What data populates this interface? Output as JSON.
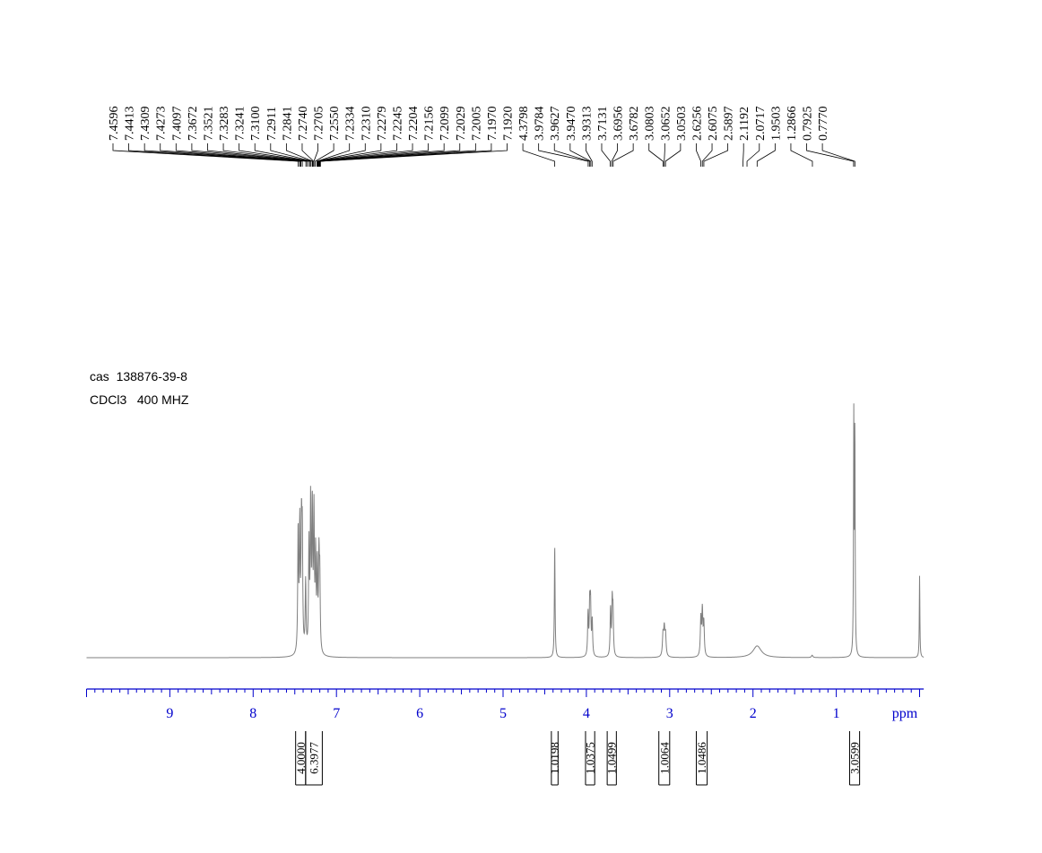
{
  "sample": {
    "cas_text": "cas  138876-39-8",
    "solvent_freq_text": "CDCl3   400 MHZ"
  },
  "colors": {
    "axis": "#0000cc",
    "spectrum": "#7f7f7f",
    "text": "#000000"
  },
  "chart_data": {
    "type": "line",
    "title": "",
    "xlabel": "ppm",
    "ylabel": "",
    "x_reversed": true,
    "xlim": [
      10.0,
      -0.05
    ],
    "ticks": [
      "9",
      "8",
      "7",
      "6",
      "5",
      "4",
      "3",
      "2",
      "1"
    ],
    "peak_labels": [
      "7.4596",
      "7.4413",
      "7.4309",
      "7.4273",
      "7.4097",
      "7.3672",
      "7.3521",
      "7.3283",
      "7.3241",
      "7.3100",
      "7.2911",
      "7.2841",
      "7.2740",
      "7.2705",
      "7.2550",
      "7.2334",
      "7.2310",
      "7.2279",
      "7.2245",
      "7.2204",
      "7.2156",
      "7.2099",
      "7.2029",
      "7.2005",
      "7.1970",
      "7.1920",
      "4.3798",
      "3.9784",
      "3.9627",
      "3.9470",
      "3.9313",
      "3.7131",
      "3.6956",
      "3.6782",
      "3.0803",
      "3.0652",
      "3.0503",
      "2.6256",
      "2.6075",
      "2.5897",
      "2.1192",
      "2.0717",
      "1.9503",
      "1.2866",
      "0.7925",
      "0.7770"
    ],
    "peaks": [
      {
        "ppm": 7.46,
        "height": 0.52,
        "width": 0.006
      },
      {
        "ppm": 7.44,
        "height": 0.53,
        "width": 0.006
      },
      {
        "ppm": 7.42,
        "height": 0.5,
        "width": 0.006
      },
      {
        "ppm": 7.41,
        "height": 0.46,
        "width": 0.006
      },
      {
        "ppm": 7.37,
        "height": 0.3,
        "width": 0.006
      },
      {
        "ppm": 7.33,
        "height": 0.45,
        "width": 0.006
      },
      {
        "ppm": 7.31,
        "height": 0.62,
        "width": 0.006
      },
      {
        "ppm": 7.29,
        "height": 0.6,
        "width": 0.006
      },
      {
        "ppm": 7.27,
        "height": 0.58,
        "width": 0.006
      },
      {
        "ppm": 7.25,
        "height": 0.4,
        "width": 0.006
      },
      {
        "ppm": 7.23,
        "height": 0.36,
        "width": 0.006
      },
      {
        "ppm": 7.21,
        "height": 0.38,
        "width": 0.006
      },
      {
        "ppm": 7.2,
        "height": 0.3,
        "width": 0.006
      },
      {
        "ppm": 4.38,
        "height": 0.48,
        "width": 0.005
      },
      {
        "ppm": 3.98,
        "height": 0.18,
        "width": 0.006
      },
      {
        "ppm": 3.96,
        "height": 0.21,
        "width": 0.006
      },
      {
        "ppm": 3.95,
        "height": 0.21,
        "width": 0.006
      },
      {
        "ppm": 3.93,
        "height": 0.15,
        "width": 0.006
      },
      {
        "ppm": 3.71,
        "height": 0.2,
        "width": 0.006
      },
      {
        "ppm": 3.69,
        "height": 0.22,
        "width": 0.006
      },
      {
        "ppm": 3.68,
        "height": 0.18,
        "width": 0.006
      },
      {
        "ppm": 3.08,
        "height": 0.09,
        "width": 0.008
      },
      {
        "ppm": 3.065,
        "height": 0.11,
        "width": 0.008
      },
      {
        "ppm": 3.05,
        "height": 0.09,
        "width": 0.008
      },
      {
        "ppm": 2.626,
        "height": 0.16,
        "width": 0.007
      },
      {
        "ppm": 2.608,
        "height": 0.19,
        "width": 0.007
      },
      {
        "ppm": 2.59,
        "height": 0.14,
        "width": 0.007
      },
      {
        "ppm": 1.95,
        "height": 0.05,
        "width": 0.06
      },
      {
        "ppm": 1.29,
        "height": 0.01,
        "width": 0.01
      },
      {
        "ppm": 0.79,
        "height": 1.0,
        "width": 0.004
      },
      {
        "ppm": 0.777,
        "height": 0.95,
        "width": 0.004
      },
      {
        "ppm": 0.0,
        "height": 0.35,
        "width": 0.004
      }
    ],
    "integrals": [
      {
        "from": 7.49,
        "to": 7.37,
        "label": "4.0000"
      },
      {
        "from": 7.37,
        "to": 7.17,
        "label": "6.3977"
      },
      {
        "from": 4.42,
        "to": 4.34,
        "label": "1.0198"
      },
      {
        "from": 4.01,
        "to": 3.9,
        "label": "1.0375"
      },
      {
        "from": 3.75,
        "to": 3.64,
        "label": "1.0499"
      },
      {
        "from": 3.13,
        "to": 3.0,
        "label": "1.0064"
      },
      {
        "from": 2.68,
        "to": 2.55,
        "label": "1.0486"
      },
      {
        "from": 0.84,
        "to": 0.72,
        "label": "3.0599"
      }
    ]
  }
}
